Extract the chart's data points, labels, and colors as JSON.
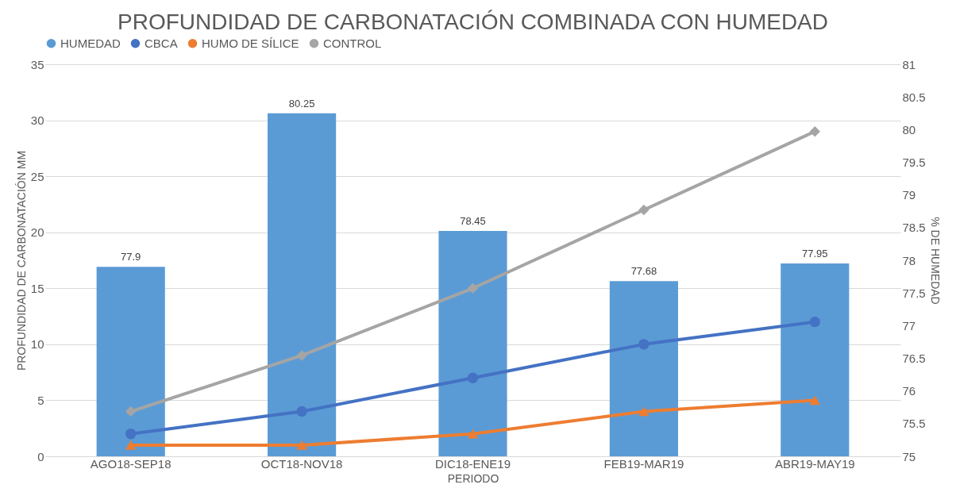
{
  "chart_data": {
    "type": "bar",
    "title": "PROFUNDIDAD DE CARBONATACIÓN COMBINADA CON HUMEDAD",
    "xlabel": "PERIODO",
    "ylabel": "PROFUNDIDAD DE CARBONATACIÓN MM",
    "y2label": "% DE HUMEDAD",
    "categories": [
      "AGO18-SEP18",
      "OCT18-NOV18",
      "DIC18-ENE19",
      "FEB19-MAR19",
      "ABR19-MAY19"
    ],
    "series": [
      {
        "name": "HUMEDAD",
        "axis": "y2",
        "color": "#5b9bd5",
        "values": [
          77.9,
          80.25,
          78.45,
          77.68,
          77.95
        ],
        "value_labels": [
          "77.9",
          "80.25",
          "78.45",
          "77.68",
          "77.95"
        ]
      },
      {
        "name": "CBCA",
        "type": "line",
        "marker": "circle",
        "color": "#4472c4",
        "values": [
          2,
          4,
          7,
          10,
          12
        ]
      },
      {
        "name": "HUMO DE SÍLICE",
        "type": "line",
        "marker": "triangle",
        "color": "#ed7d31",
        "values": [
          1,
          1,
          2,
          4,
          5
        ]
      },
      {
        "name": "CONTROL",
        "type": "line",
        "marker": "diamond",
        "color": "#a5a5a5",
        "values": [
          4,
          9,
          15,
          22,
          29
        ]
      }
    ],
    "ylim": [
      0,
      35
    ],
    "yticks": [
      0,
      5,
      10,
      15,
      20,
      25,
      30,
      35
    ],
    "y2lim": [
      75,
      81
    ],
    "y2ticks": [
      75,
      75.5,
      76,
      76.5,
      77,
      77.5,
      78,
      78.5,
      79,
      79.5,
      80,
      80.5,
      81
    ],
    "grid": "y",
    "legend": "top"
  }
}
